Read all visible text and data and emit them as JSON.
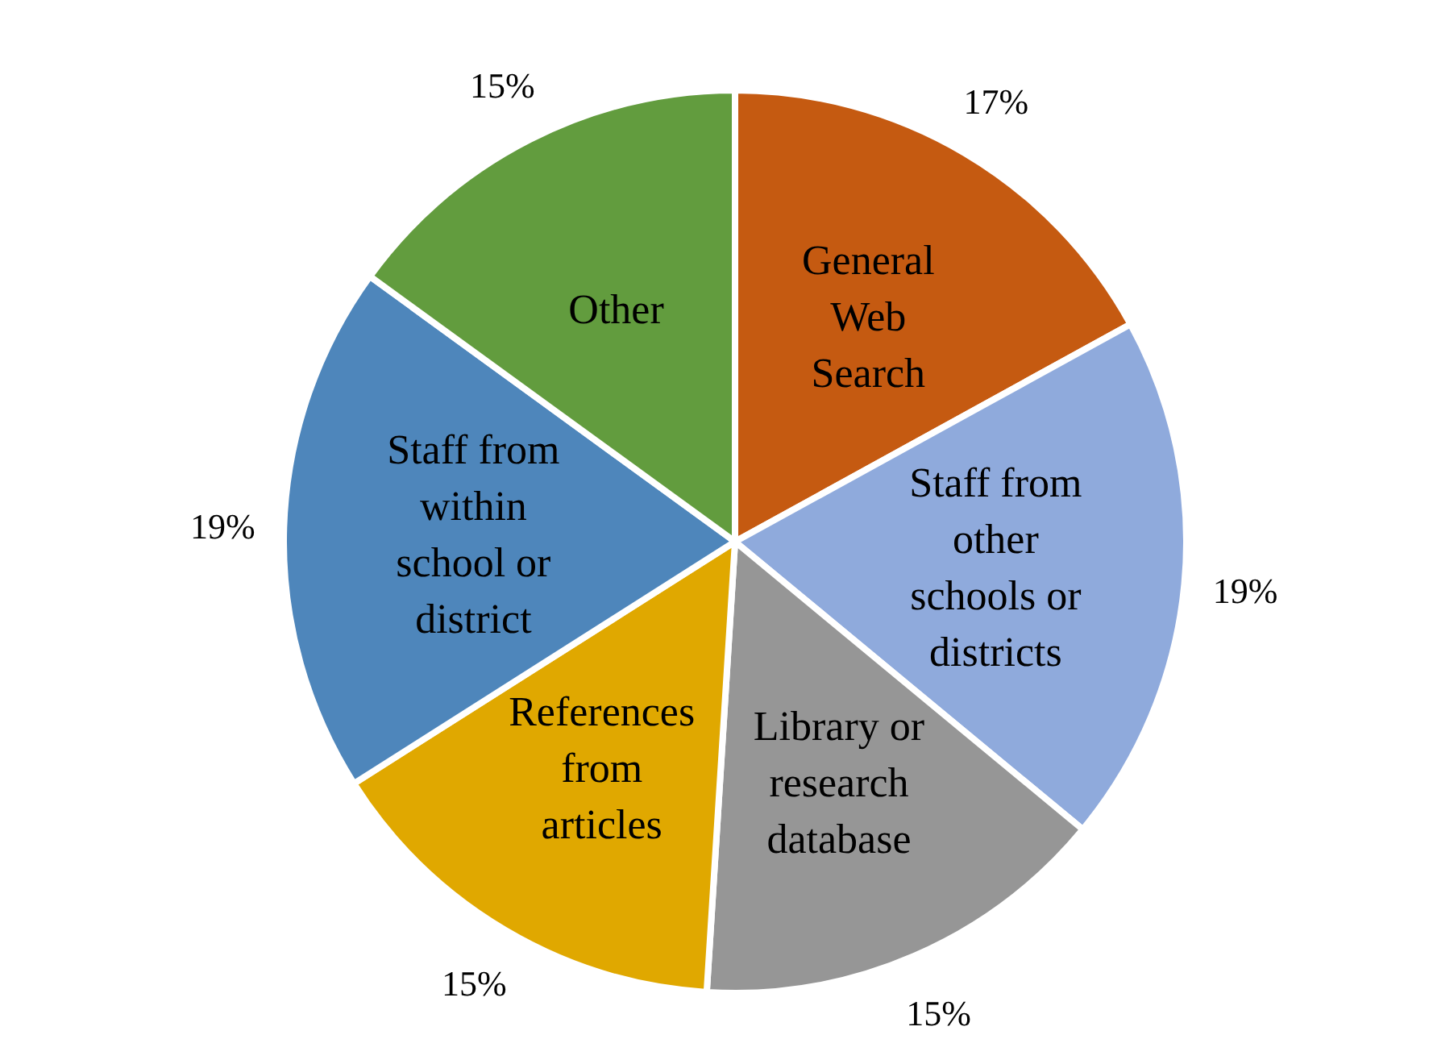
{
  "chart_data": {
    "type": "pie",
    "categories": [
      "General\nWeb\nSearch",
      "Staff from\nother\nschools or\ndistricts",
      "Library or\nresearch\ndatabase",
      "References\nfrom\narticles",
      "Staff from\nwithin\nschool or\ndistrict",
      "Other"
    ],
    "values": [
      17,
      19,
      15,
      15,
      19,
      15
    ],
    "colors": [
      "#c55a11",
      "#8faadc",
      "#969696",
      "#e0a800",
      "#4e86bb",
      "#629c3e"
    ],
    "value_labels": [
      "17%",
      "19%",
      "15%",
      "15%",
      "19%",
      "15%"
    ]
  }
}
